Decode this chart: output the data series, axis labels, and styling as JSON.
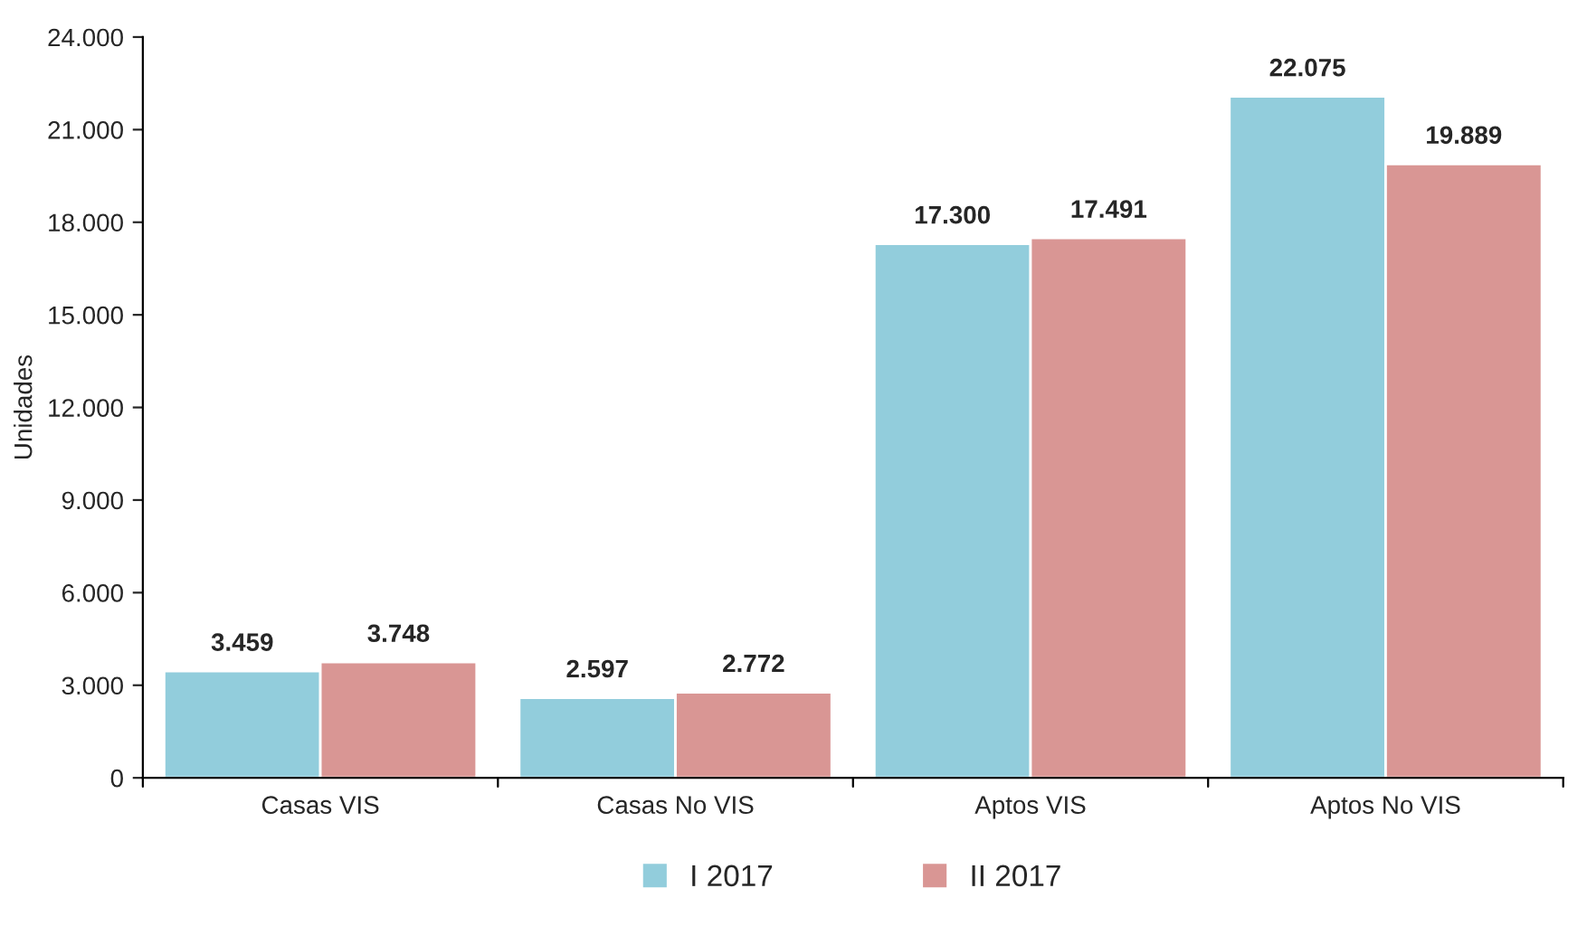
{
  "chart_data": {
    "type": "bar",
    "ylabel": "Unidades",
    "categories": [
      "Casas VIS",
      "Casas No VIS",
      "Aptos VIS",
      "Aptos No VIS"
    ],
    "series": [
      {
        "name": "I 2017",
        "color": "#92cddc",
        "values": [
          3459,
          2597,
          17300,
          22075
        ],
        "value_labels": [
          "3.459",
          "2.597",
          "17.300",
          "22.075"
        ]
      },
      {
        "name": "II 2017",
        "color": "#d99694",
        "values": [
          3748,
          2772,
          17491,
          19889
        ],
        "value_labels": [
          "3.748",
          "2.772",
          "17.491",
          "19.889"
        ]
      }
    ],
    "ylim": [
      0,
      24000
    ],
    "yticks": [
      0,
      {
        "value": 3000,
        "label": "3.000"
      },
      {
        "value": 6000,
        "label": "6.000"
      },
      {
        "value": 9000,
        "label": "9.000"
      },
      {
        "value": 12000,
        "label": "12.000"
      },
      {
        "value": 15000,
        "label": "15.000"
      },
      {
        "value": 18000,
        "label": "18.000"
      },
      {
        "value": 21000,
        "label": "21.000"
      },
      {
        "value": 24000,
        "label": "24.000"
      }
    ],
    "grid": false,
    "legend": "bottom"
  }
}
